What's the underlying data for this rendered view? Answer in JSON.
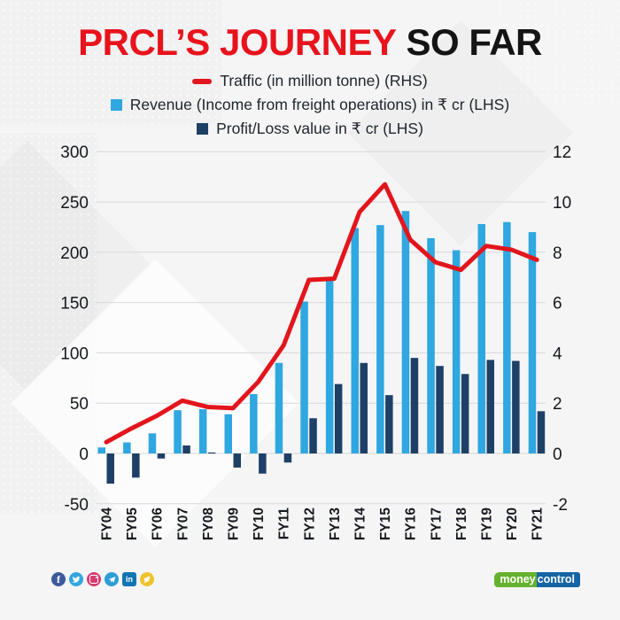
{
  "title": {
    "main": "PRCL’S JOURNEY",
    "suffix": "SO FAR"
  },
  "legend": [
    {
      "marker": "line-dash",
      "color": "#e3151c",
      "label": "Traffic (in million tonne) (RHS)"
    },
    {
      "marker": "square",
      "color": "#2fa7e0",
      "label": "Revenue (Income from freight operations) in ₹ cr (LHS)"
    },
    {
      "marker": "square",
      "color": "#1f4066",
      "label": "Profit/Loss value in ₹ cr (LHS)"
    }
  ],
  "chart_data": {
    "type": "bar+line",
    "categories": [
      "FY04",
      "FY05",
      "FY06",
      "FY07",
      "FY08",
      "FY09",
      "FY10",
      "FY11",
      "FY12",
      "FY13",
      "FY14",
      "FY15",
      "FY16",
      "FY17",
      "FY18",
      "FY19",
      "FY20",
      "FY21"
    ],
    "series": [
      {
        "name": "Revenue (Income from freight operations) in ₹ cr",
        "type": "bar",
        "axis": "LHS",
        "color": "#2fa7e0",
        "values": [
          6,
          11,
          20,
          43,
          44,
          39,
          59,
          90,
          151,
          172,
          224,
          227,
          241,
          214,
          202,
          228,
          230,
          220
        ]
      },
      {
        "name": "Profit/Loss value in ₹ cr",
        "type": "bar",
        "axis": "LHS",
        "color": "#1f4066",
        "values": [
          -30,
          -24,
          -5,
          8,
          1,
          -14,
          -20,
          -9,
          35,
          69,
          90,
          58,
          95,
          87,
          79,
          93,
          92,
          42
        ]
      },
      {
        "name": "Traffic (in million tonne)",
        "type": "line",
        "axis": "RHS",
        "color": "#e3151c",
        "values": [
          0.45,
          1.0,
          1.5,
          2.1,
          1.85,
          1.8,
          2.85,
          4.3,
          6.9,
          6.95,
          9.6,
          10.7,
          8.5,
          7.6,
          7.3,
          8.25,
          8.1,
          7.7
        ]
      }
    ],
    "left_axis": {
      "min": -50,
      "max": 300,
      "step": 50,
      "ticks": [
        300,
        250,
        200,
        150,
        100,
        50,
        0,
        -50
      ]
    },
    "right_axis": {
      "min": -2,
      "max": 12,
      "step": 2,
      "ticks": [
        12,
        10,
        8,
        6,
        4,
        2,
        0,
        -2
      ]
    },
    "grid": true,
    "legend_position": "top"
  },
  "footer": {
    "social_icons": [
      {
        "name": "facebook-icon",
        "color": "#3c5b9b",
        "glyph": "f"
      },
      {
        "name": "twitter-icon",
        "color": "#32a7df"
      },
      {
        "name": "instagram-icon",
        "color": "#d63d72"
      },
      {
        "name": "telegram-icon",
        "color": "#2d9ed8"
      },
      {
        "name": "linkedin-icon",
        "color": "#1175b2",
        "glyph": "in"
      },
      {
        "name": "koo-icon",
        "color": "#efc32d"
      }
    ],
    "brand": {
      "part1": "money",
      "part2": "control",
      "green": "#65b22e",
      "blue": "#1565a5"
    }
  },
  "colors": {
    "title_red": "#e8131c",
    "title_black": "#141414",
    "grid": "#d8d8d8",
    "background": "#f5f5f6",
    "text": "#20262e"
  }
}
